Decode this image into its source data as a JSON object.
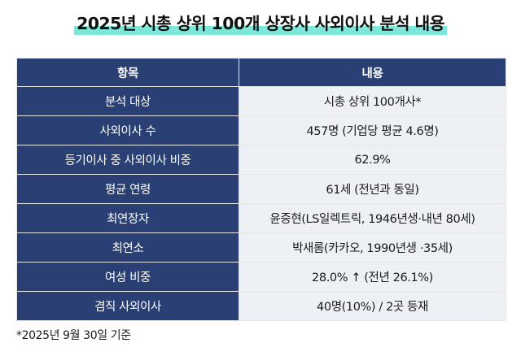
{
  "title": "2025년 시총 상위 100개 상장사 사외이사 분석 내용",
  "table": {
    "headers": [
      "항목",
      "내용"
    ],
    "rows": [
      [
        "분석 대상",
        "시총 상위 100개사*"
      ],
      [
        "사외이사 수",
        "457명 (기업당 평균 4.6명)"
      ],
      [
        "등기이사 중 사외이사 비중",
        "62.9%"
      ],
      [
        "평균 연령",
        "61세 (전년과 동일)"
      ],
      [
        "최연장자",
        "윤증현(LS일렉트릭, 1946년생·내년 80세)"
      ],
      [
        "최연소",
        "박새롬(카카오, 1990년생 ·35세)"
      ],
      [
        "여성 비중",
        "28.0% ↑ (전년 26.1%)"
      ],
      [
        "겸직 사외이사",
        "40명(10%) / 2곳 등재"
      ]
    ]
  },
  "footnote": "*2025년 9월 30일 기준",
  "colors": {
    "header_bg": "#2a3f73",
    "cell_bg": "#edf0f5",
    "title_highlight": "#7ee8d8"
  }
}
